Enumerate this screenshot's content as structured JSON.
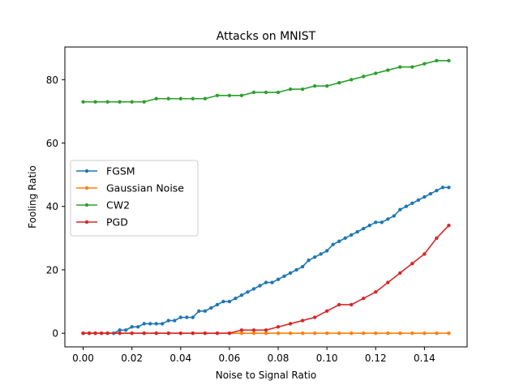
{
  "chart_data": {
    "type": "line",
    "title": "Attacks on MNIST",
    "xlabel": "Noise to Signal Ratio",
    "ylabel": "Fooling Ratio",
    "xlim": [
      -0.0075,
      0.1575
    ],
    "ylim": [
      -4.3,
      90.3
    ],
    "xticks": [
      0.0,
      0.02,
      0.04,
      0.06,
      0.08,
      0.1,
      0.12,
      0.14
    ],
    "xtick_labels": [
      "0.00",
      "0.02",
      "0.04",
      "0.06",
      "0.08",
      "0.10",
      "0.12",
      "0.14"
    ],
    "yticks": [
      0,
      20,
      40,
      60,
      80
    ],
    "ytick_labels": [
      "0",
      "20",
      "40",
      "60",
      "80"
    ],
    "grid": false,
    "legend_position": "center-left",
    "x": [
      0.0,
      0.0025,
      0.005,
      0.0075,
      0.01,
      0.0125,
      0.015,
      0.0175,
      0.02,
      0.0225,
      0.025,
      0.0275,
      0.03,
      0.0325,
      0.035,
      0.0375,
      0.04,
      0.0425,
      0.045,
      0.0475,
      0.05,
      0.0525,
      0.055,
      0.0575,
      0.06,
      0.0625,
      0.065,
      0.0675,
      0.07,
      0.0725,
      0.075,
      0.0775,
      0.08,
      0.0825,
      0.085,
      0.0875,
      0.09,
      0.0925,
      0.095,
      0.0975,
      0.1,
      0.1025,
      0.105,
      0.1075,
      0.11,
      0.1125,
      0.115,
      0.1175,
      0.12,
      0.1225,
      0.125,
      0.1275,
      0.13,
      0.1325,
      0.135,
      0.1375,
      0.14,
      0.1425,
      0.145,
      0.1475,
      0.15
    ],
    "series": [
      {
        "name": "FGSM",
        "color": "#1f77b4",
        "x": [
          0.0,
          0.0025,
          0.005,
          0.0075,
          0.01,
          0.0125,
          0.015,
          0.0175,
          0.02,
          0.0225,
          0.025,
          0.0275,
          0.03,
          0.0325,
          0.035,
          0.0375,
          0.04,
          0.0425,
          0.045,
          0.0475,
          0.05,
          0.0525,
          0.055,
          0.0575,
          0.06,
          0.0625,
          0.065,
          0.0675,
          0.07,
          0.0725,
          0.075,
          0.0775,
          0.08,
          0.0825,
          0.085,
          0.0875,
          0.09,
          0.0925,
          0.095,
          0.0975,
          0.1,
          0.1025,
          0.105,
          0.1075,
          0.11,
          0.1125,
          0.115,
          0.1175,
          0.12,
          0.1225,
          0.125,
          0.1275,
          0.13,
          0.1325,
          0.135,
          0.1375,
          0.14,
          0.1425,
          0.145,
          0.1475,
          0.15
        ],
        "values": [
          0,
          0,
          0,
          0,
          0,
          0,
          1,
          1,
          2,
          2,
          3,
          3,
          3,
          3,
          4,
          4,
          5,
          5,
          5,
          7,
          7,
          8,
          9,
          10,
          10,
          11,
          12,
          13,
          14,
          15,
          16,
          16,
          17,
          18,
          19,
          20,
          21,
          23,
          24,
          25,
          26,
          28,
          29,
          30,
          31,
          32,
          33,
          34,
          35,
          35,
          36,
          37,
          39,
          40,
          41,
          42,
          43,
          44,
          45,
          46,
          46
        ]
      },
      {
        "name": "Gaussian Noise",
        "color": "#ff7f0e",
        "x": [
          0.0,
          0.0025,
          0.005,
          0.0075,
          0.01,
          0.015,
          0.02,
          0.025,
          0.03,
          0.035,
          0.04,
          0.045,
          0.05,
          0.055,
          0.06,
          0.065,
          0.07,
          0.075,
          0.08,
          0.085,
          0.09,
          0.095,
          0.1,
          0.105,
          0.11,
          0.115,
          0.12,
          0.125,
          0.13,
          0.135,
          0.14,
          0.145,
          0.15
        ],
        "values": [
          0,
          0,
          0,
          0,
          0,
          0,
          0,
          0,
          0,
          0,
          0,
          0,
          0,
          0,
          0,
          0,
          0,
          0,
          0,
          0,
          0,
          0,
          0,
          0,
          0,
          0,
          0,
          0,
          0,
          0,
          0,
          0,
          0
        ]
      },
      {
        "name": "CW2",
        "color": "#2ca02c",
        "x": [
          0.0,
          0.005,
          0.01,
          0.015,
          0.02,
          0.025,
          0.03,
          0.035,
          0.04,
          0.045,
          0.05,
          0.055,
          0.06,
          0.065,
          0.07,
          0.075,
          0.08,
          0.085,
          0.09,
          0.095,
          0.1,
          0.105,
          0.11,
          0.115,
          0.12,
          0.125,
          0.13,
          0.135,
          0.14,
          0.145,
          0.15
        ],
        "values": [
          73,
          73,
          73,
          73,
          73,
          73,
          74,
          74,
          74,
          74,
          74,
          75,
          75,
          75,
          76,
          76,
          76,
          77,
          77,
          78,
          78,
          79,
          80,
          81,
          82,
          83,
          84,
          84,
          85,
          86,
          86
        ]
      },
      {
        "name": "PGD",
        "color": "#d62728",
        "x": [
          0.0,
          0.0025,
          0.005,
          0.0075,
          0.01,
          0.015,
          0.02,
          0.025,
          0.03,
          0.035,
          0.04,
          0.045,
          0.05,
          0.055,
          0.06,
          0.065,
          0.07,
          0.075,
          0.08,
          0.085,
          0.09,
          0.095,
          0.1,
          0.105,
          0.11,
          0.115,
          0.12,
          0.125,
          0.13,
          0.135,
          0.14,
          0.145,
          0.15
        ],
        "values": [
          0,
          0,
          0,
          0,
          0,
          0,
          0,
          0,
          0,
          0,
          0,
          0,
          0,
          0,
          0,
          1,
          1,
          1,
          2,
          3,
          4,
          5,
          7,
          9,
          9,
          11,
          13,
          16,
          19,
          22,
          25,
          30,
          34
        ]
      }
    ]
  }
}
